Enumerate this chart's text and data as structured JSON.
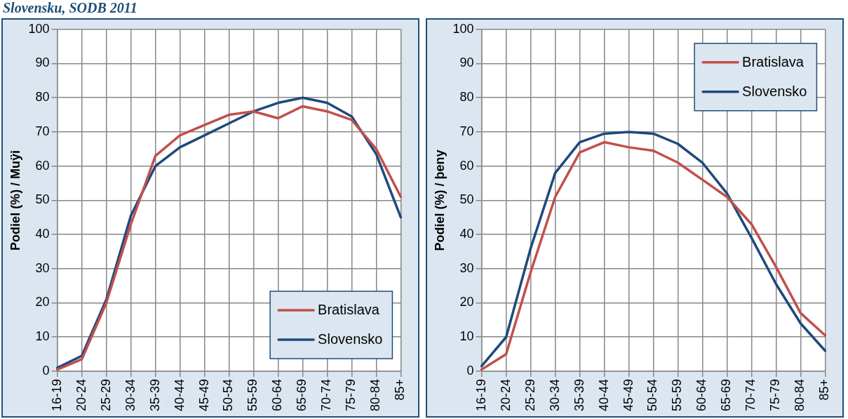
{
  "chart_data": [
    {
      "type": "line",
      "title": "Slovensku, SODB 2011",
      "ylabel": "Podiel (%) / Muÿi",
      "categories": [
        "16-19",
        "20-24",
        "25-29",
        "30-34",
        "35-39",
        "40-44",
        "45-49",
        "50-54",
        "55-59",
        "60-64",
        "65-69",
        "70-74",
        "75-79",
        "80-84",
        "85+"
      ],
      "series": [
        {
          "name": "Bratislava",
          "color": "#c0504d",
          "values": [
            0.5,
            3.5,
            20,
            43,
            63,
            69,
            72,
            75,
            76,
            74,
            77.5,
            76,
            73.5,
            65,
            51
          ]
        },
        {
          "name": "Slovensko",
          "color": "#1f497d",
          "values": [
            1,
            4.5,
            21,
            45.5,
            60,
            65.5,
            69,
            72.5,
            76,
            78.5,
            80,
            78.5,
            74.5,
            63.5,
            45
          ]
        }
      ],
      "ylim": [
        0,
        100
      ],
      "yticks": [
        0,
        10,
        20,
        30,
        40,
        50,
        60,
        70,
        80,
        90,
        100
      ],
      "grid": true,
      "legend": "bottom right",
      "marker": "none",
      "line_style": "solid"
    },
    {
      "type": "line",
      "ylabel": "Podiel (%) / þeny",
      "categories": [
        "16-19",
        "20-24",
        "25-29",
        "30-34",
        "35-39",
        "40-44",
        "45-49",
        "50-54",
        "55-59",
        "60-64",
        "65-69",
        "70-74",
        "75-79",
        "80-84",
        "85+"
      ],
      "series": [
        {
          "name": "Bratislava",
          "color": "#c0504d",
          "values": [
            0.5,
            5,
            29,
            51,
            64,
            67,
            65.5,
            64.5,
            61,
            56,
            51,
            43,
            30.5,
            17,
            10.5
          ]
        },
        {
          "name": "Slovensko",
          "color": "#1f497d",
          "values": [
            1.5,
            10,
            36,
            58,
            67,
            69.5,
            70,
            69.5,
            66.5,
            61,
            52,
            39,
            25.5,
            14,
            6
          ]
        }
      ],
      "ylim": [
        0,
        100
      ],
      "yticks": [
        0,
        10,
        20,
        30,
        40,
        50,
        60,
        70,
        80,
        90,
        100
      ],
      "grid": true,
      "legend": "top right",
      "marker": "none",
      "line_style": "solid"
    }
  ]
}
